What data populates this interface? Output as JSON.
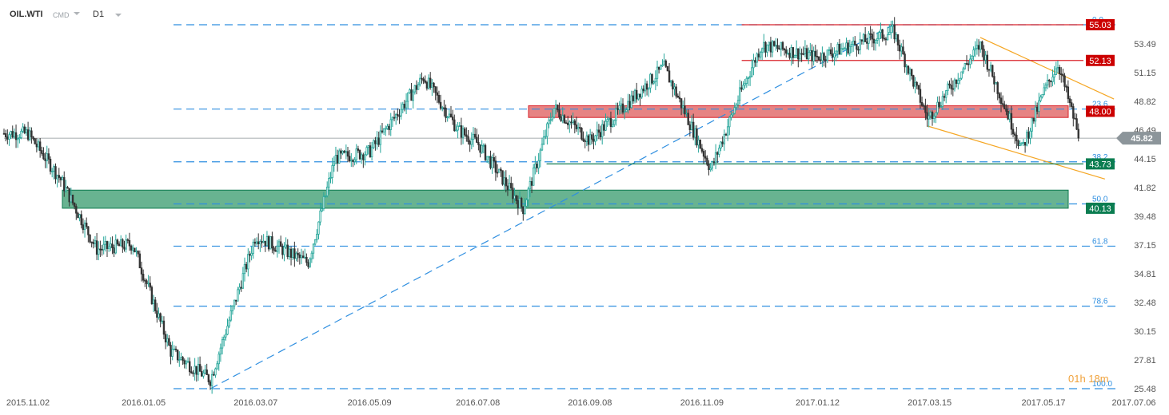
{
  "header": {
    "symbol": "OIL.WTI",
    "type": "CMD",
    "timeframe": "D1"
  },
  "timer": "01h 18m",
  "colors": {
    "bull": "#26a69a",
    "bear": "#333333",
    "fib": "#2f8fe0",
    "resistance": "#d9232a",
    "support": "#0e7a4f",
    "current": "#8a9296",
    "channel": "#f5a623"
  },
  "chart_data": {
    "type": "candlestick",
    "title": "",
    "xlabel": "",
    "ylabel": "",
    "ylim": [
      25.2,
      56.0
    ],
    "y_ticks": [
      "53.49",
      "51.15",
      "48.82",
      "46.49",
      "44.15",
      "41.82",
      "39.48",
      "37.15",
      "34.81",
      "32.48",
      "30.15",
      "27.81",
      "25.48"
    ],
    "x_ticks": [
      "2015.11.02",
      "2016.01.05",
      "2016.03.07",
      "2016.05.09",
      "2016.07.08",
      "2016.09.08",
      "2016.11.09",
      "2017.01.12",
      "2017.03.15",
      "2017.05.17",
      "2017.07.06"
    ],
    "price_series": [
      {
        "date": "2015.11.02",
        "close": 46.2
      },
      {
        "date": "2015.11.20",
        "close": 42.5
      },
      {
        "date": "2015.12.10",
        "close": 36.8
      },
      {
        "date": "2015.12.30",
        "close": 37.2
      },
      {
        "date": "2016.01.20",
        "close": 28.5
      },
      {
        "date": "2016.02.11",
        "close": 26.2
      },
      {
        "date": "2016.03.07",
        "close": 37.9
      },
      {
        "date": "2016.04.05",
        "close": 35.7
      },
      {
        "date": "2016.04.20",
        "close": 44.2
      },
      {
        "date": "2016.05.09",
        "close": 44.7
      },
      {
        "date": "2016.06.08",
        "close": 50.8
      },
      {
        "date": "2016.06.27",
        "close": 46.5
      },
      {
        "date": "2016.07.08",
        "close": 45.4
      },
      {
        "date": "2016.08.02",
        "close": 40.1
      },
      {
        "date": "2016.08.19",
        "close": 48.3
      },
      {
        "date": "2016.09.08",
        "close": 45.6
      },
      {
        "date": "2016.10.19",
        "close": 51.6
      },
      {
        "date": "2016.11.14",
        "close": 43.3
      },
      {
        "date": "2016.11.30",
        "close": 49.4
      },
      {
        "date": "2016.12.12",
        "close": 53.4
      },
      {
        "date": "2017.01.12",
        "close": 52.4
      },
      {
        "date": "2017.02.23",
        "close": 54.5
      },
      {
        "date": "2017.03.14",
        "close": 47.4
      },
      {
        "date": "2017.04.12",
        "close": 53.4
      },
      {
        "date": "2017.05.05",
        "close": 44.9
      },
      {
        "date": "2017.05.17",
        "close": 49.5
      },
      {
        "date": "2017.05.25",
        "close": 51.9
      },
      {
        "date": "2017.06.01",
        "close": 48.3
      },
      {
        "date": "2017.06.06",
        "close": 45.82
      }
    ],
    "current_price": {
      "value": "45.82"
    },
    "price_levels": [
      {
        "value": "55.03",
        "kind": "resistance"
      },
      {
        "value": "52.13",
        "kind": "resistance"
      },
      {
        "value": "48.00",
        "kind": "resistance-zone",
        "zone": [
          47.5,
          48.45
        ]
      },
      {
        "value": "43.73",
        "kind": "support"
      },
      {
        "value": "40.13",
        "kind": "support-zone",
        "zone": [
          40.13,
          41.6
        ]
      }
    ],
    "fibonacci": [
      {
        "level": "0.0",
        "price": 55.03
      },
      {
        "level": "23.6",
        "price": 48.18
      },
      {
        "level": "38.2",
        "price": 43.9
      },
      {
        "level": "50.0",
        "price": 40.48
      },
      {
        "level": "61.8",
        "price": 37.05
      },
      {
        "level": "78.6",
        "price": 32.18
      },
      {
        "level": "100.0",
        "price": 25.48
      }
    ],
    "trendlines": [
      {
        "kind": "fib-base",
        "from": {
          "date": "2016.02.11",
          "price": 25.48
        },
        "to": {
          "date": "2017.02.23",
          "price": 55.03
        }
      },
      {
        "kind": "channel-upper",
        "from": {
          "date": "2017.04.12",
          "price": 54.0
        },
        "to": {
          "date": "2017.06.25",
          "price": 49.0
        }
      },
      {
        "kind": "channel-lower",
        "from": {
          "date": "2017.03.14",
          "price": 46.8
        },
        "to": {
          "date": "2017.06.20",
          "price": 42.5
        }
      }
    ],
    "grid": false,
    "legend": "none"
  }
}
